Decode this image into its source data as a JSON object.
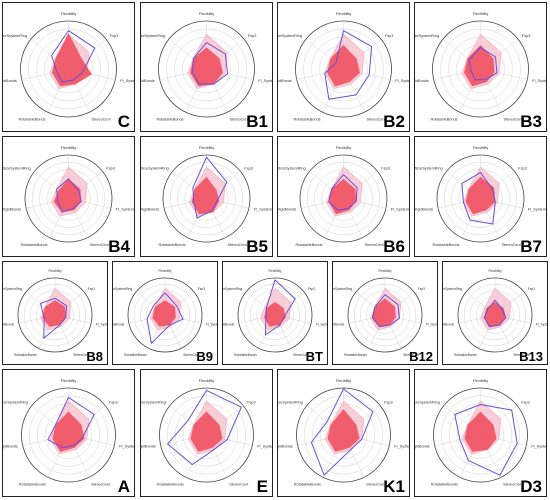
{
  "axes": [
    "Flexibility",
    "Fsp3",
    "FI_SystemRing",
    "StereoCent",
    "RotatableBonds",
    "RigidBonds",
    "SizeSystemRing"
  ],
  "colors": {
    "optimal_fill": "#f7c7d3",
    "optimal_stroke": "#f3a7ba",
    "core_fill": "#f0505f",
    "compound_line": "#6a4fd8",
    "grid": "#c8c8c8",
    "outer_ring": "#444444"
  },
  "chart_data": [
    {
      "type": "radar",
      "label": "C",
      "series": [
        {
          "values": [
            0.72,
            0.55,
            0.4,
            0.35,
            0.45,
            0.4,
            0.35
          ]
        },
        {
          "values": [
            0.75,
            0.35,
            0.5,
            0.35,
            0.4,
            0.35,
            0.35
          ]
        },
        {
          "values": [
            0.8,
            0.7,
            0.3,
            0.25,
            0.3,
            0.25,
            0.45
          ]
        }
      ]
    },
    {
      "type": "radar",
      "label": "B1",
      "series": [
        {
          "values": [
            0.72,
            0.55,
            0.4,
            0.35,
            0.45,
            0.4,
            0.35
          ]
        },
        {
          "values": [
            0.45,
            0.35,
            0.35,
            0.35,
            0.4,
            0.35,
            0.35
          ]
        },
        {
          "values": [
            0.55,
            0.5,
            0.45,
            0.35,
            0.35,
            0.3,
            0.35
          ]
        }
      ]
    },
    {
      "type": "radar",
      "label": "B2",
      "series": [
        {
          "values": [
            0.72,
            0.55,
            0.4,
            0.35,
            0.45,
            0.4,
            0.35
          ]
        },
        {
          "values": [
            0.5,
            0.35,
            0.35,
            0.3,
            0.4,
            0.35,
            0.35
          ]
        },
        {
          "values": [
            0.8,
            0.75,
            0.55,
            0.6,
            0.7,
            0.4,
            0.2
          ]
        }
      ]
    },
    {
      "type": "radar",
      "label": "B3",
      "series": [
        {
          "values": [
            0.72,
            0.55,
            0.4,
            0.35,
            0.45,
            0.4,
            0.35
          ]
        },
        {
          "values": [
            0.5,
            0.35,
            0.3,
            0.3,
            0.4,
            0.35,
            0.35
          ]
        },
        {
          "values": [
            0.45,
            0.4,
            0.35,
            0.25,
            0.25,
            0.2,
            0.3
          ]
        }
      ]
    },
    {
      "type": "radar",
      "label": "B4",
      "series": [
        {
          "values": [
            0.72,
            0.55,
            0.4,
            0.35,
            0.45,
            0.4,
            0.35
          ]
        },
        {
          "values": [
            0.45,
            0.35,
            0.3,
            0.3,
            0.35,
            0.35,
            0.3
          ]
        },
        {
          "values": [
            0.45,
            0.3,
            0.3,
            0.25,
            0.35,
            0.25,
            0.35
          ]
        }
      ]
    },
    {
      "type": "radar",
      "label": "B5",
      "series": [
        {
          "values": [
            0.72,
            0.55,
            0.4,
            0.35,
            0.45,
            0.4,
            0.35
          ]
        },
        {
          "values": [
            0.5,
            0.3,
            0.3,
            0.35,
            0.4,
            0.35,
            0.35
          ]
        },
        {
          "values": [
            0.95,
            0.6,
            0.25,
            0.3,
            0.5,
            0.3,
            0.4
          ]
        }
      ]
    },
    {
      "type": "radar",
      "label": "B6",
      "series": [
        {
          "values": [
            0.72,
            0.55,
            0.4,
            0.35,
            0.45,
            0.4,
            0.35
          ]
        },
        {
          "values": [
            0.45,
            0.35,
            0.3,
            0.3,
            0.4,
            0.35,
            0.35
          ]
        },
        {
          "values": [
            0.55,
            0.4,
            0.3,
            0.25,
            0.3,
            0.35,
            0.35
          ]
        }
      ]
    },
    {
      "type": "radar",
      "label": "B7",
      "series": [
        {
          "values": [
            0.72,
            0.55,
            0.4,
            0.35,
            0.45,
            0.4,
            0.35
          ]
        },
        {
          "values": [
            0.5,
            0.4,
            0.35,
            0.3,
            0.4,
            0.35,
            0.35
          ]
        },
        {
          "values": [
            0.6,
            0.35,
            0.35,
            0.65,
            0.55,
            0.4,
            0.55
          ]
        }
      ]
    },
    {
      "type": "radar",
      "label": "B8",
      "series": [
        {
          "values": [
            0.72,
            0.55,
            0.4,
            0.35,
            0.45,
            0.4,
            0.35
          ]
        },
        {
          "values": [
            0.4,
            0.35,
            0.3,
            0.3,
            0.35,
            0.35,
            0.35
          ]
        },
        {
          "values": [
            0.45,
            0.4,
            0.3,
            0.3,
            0.7,
            0.3,
            0.5
          ]
        }
      ]
    },
    {
      "type": "radar",
      "label": "B9",
      "series": [
        {
          "values": [
            0.72,
            0.55,
            0.4,
            0.35,
            0.45,
            0.4,
            0.35
          ]
        },
        {
          "values": [
            0.4,
            0.35,
            0.3,
            0.3,
            0.35,
            0.35,
            0.35
          ]
        },
        {
          "values": [
            0.6,
            0.4,
            0.5,
            0.3,
            0.85,
            0.5,
            0.4
          ]
        }
      ]
    },
    {
      "type": "radar",
      "label": "BT",
      "series": [
        {
          "values": [
            0.72,
            0.55,
            0.4,
            0.35,
            0.45,
            0.4,
            0.35
          ]
        },
        {
          "values": [
            0.35,
            0.3,
            0.3,
            0.3,
            0.35,
            0.3,
            0.3
          ]
        },
        {
          "values": [
            0.95,
            0.7,
            0.25,
            0.3,
            0.6,
            0.25,
            0.3
          ]
        }
      ]
    },
    {
      "type": "radar",
      "label": "B12",
      "series": [
        {
          "values": [
            0.72,
            0.55,
            0.4,
            0.35,
            0.45,
            0.4,
            0.35
          ]
        },
        {
          "values": [
            0.45,
            0.35,
            0.3,
            0.3,
            0.35,
            0.35,
            0.35
          ]
        },
        {
          "values": [
            0.55,
            0.45,
            0.4,
            0.3,
            0.35,
            0.35,
            0.35
          ]
        }
      ]
    },
    {
      "type": "radar",
      "label": "B13",
      "series": [
        {
          "values": [
            0.72,
            0.55,
            0.4,
            0.35,
            0.45,
            0.4,
            0.35
          ]
        },
        {
          "values": [
            0.35,
            0.3,
            0.3,
            0.3,
            0.35,
            0.3,
            0.3
          ]
        },
        {
          "values": [
            0.4,
            0.25,
            0.3,
            0.3,
            0.35,
            0.3,
            0.25
          ]
        }
      ]
    },
    {
      "type": "radar",
      "label": "A",
      "series": [
        {
          "values": [
            0.72,
            0.55,
            0.4,
            0.35,
            0.45,
            0.4,
            0.35
          ]
        },
        {
          "values": [
            0.5,
            0.35,
            0.35,
            0.3,
            0.4,
            0.35,
            0.35
          ]
        },
        {
          "values": [
            0.8,
            0.7,
            0.3,
            0.25,
            0.3,
            0.45,
            0.35
          ]
        }
      ]
    },
    {
      "type": "radar",
      "label": "E",
      "series": [
        {
          "values": [
            0.72,
            0.55,
            0.4,
            0.35,
            0.45,
            0.4,
            0.35
          ]
        },
        {
          "values": [
            0.5,
            0.35,
            0.35,
            0.3,
            0.4,
            0.35,
            0.35
          ]
        },
        {
          "values": [
            0.95,
            0.95,
            0.45,
            0.35,
            0.7,
            0.85,
            0.5
          ]
        }
      ]
    },
    {
      "type": "radar",
      "label": "K1",
      "series": [
        {
          "values": [
            0.72,
            0.55,
            0.4,
            0.35,
            0.45,
            0.4,
            0.35
          ]
        },
        {
          "values": [
            0.55,
            0.35,
            0.35,
            0.3,
            0.4,
            0.35,
            0.35
          ]
        },
        {
          "values": [
            0.98,
            0.8,
            0.4,
            0.35,
            0.95,
            0.7,
            0.45
          ]
        }
      ]
    },
    {
      "type": "radar",
      "label": "D3",
      "series": [
        {
          "values": [
            0.72,
            0.55,
            0.4,
            0.35,
            0.45,
            0.4,
            0.35
          ]
        },
        {
          "values": [
            0.5,
            0.35,
            0.35,
            0.35,
            0.4,
            0.35,
            0.35
          ]
        },
        {
          "values": [
            0.65,
            0.85,
            0.8,
            0.95,
            0.6,
            0.45,
            0.7
          ]
        }
      ]
    }
  ]
}
